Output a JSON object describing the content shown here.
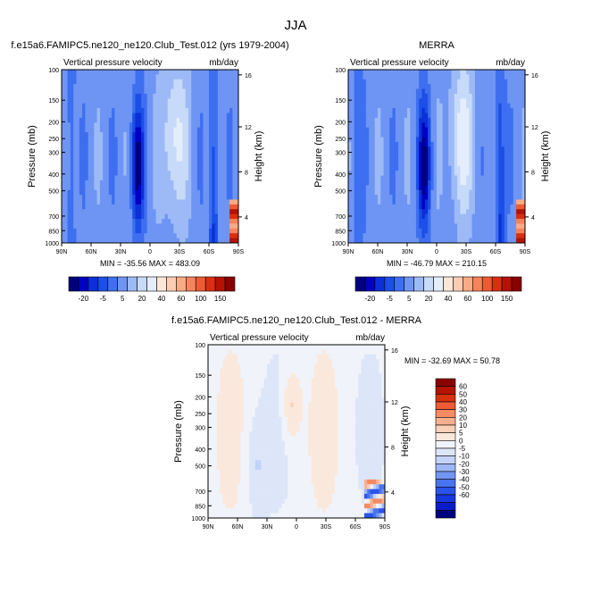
{
  "figure": {
    "title": "JJA"
  },
  "colors": {
    "diverging_wide": [
      "#00007f",
      "#0000c4",
      "#0b2fd8",
      "#1b4fe6",
      "#3e6ff0",
      "#6e95f4",
      "#9dbaf7",
      "#c7daf9",
      "#e4eefa",
      "#fbe6d8",
      "#fbcdb2",
      "#f9ab85",
      "#f6835b",
      "#ef5a33",
      "#db2d10",
      "#b51203",
      "#8a0000"
    ],
    "diverging_diff": [
      "#00007f",
      "#0a1cc8",
      "#1737de",
      "#2a53ea",
      "#4a73f0",
      "#7395f4",
      "#9db6f6",
      "#c3d3f7",
      "#dde6f8",
      "#f0f3f9",
      "#fbe8dc",
      "#fbd0b8",
      "#f9b08f",
      "#f58a63",
      "#ed5c36",
      "#d8310f",
      "#b51303",
      "#8a0000"
    ]
  },
  "chart_data": [
    {
      "type": "heatmap",
      "title": "f.e15a6.FAMIPC5.ne120_ne120.Club_Test.012 (yrs 1979-2004)",
      "left_string": "Vertical pressure velocity",
      "right_string": "mb/day",
      "xlabel": "",
      "ylabel": "Pressure (mb)",
      "ylabel_right": "Height (km)",
      "x_ticks": [
        "90N",
        "60N",
        "30N",
        "0",
        "30S",
        "60S",
        "90S"
      ],
      "y_ticks": [
        "100",
        "150",
        "200",
        "250",
        "300",
        "400",
        "500",
        "700",
        "850",
        "1000"
      ],
      "y2_ticks": [
        "4",
        "8",
        "12",
        "16"
      ],
      "min_max": "MIN = -35.56  MAX = 483.09",
      "colorbar_labels": [
        "-20",
        "-5",
        "5",
        "20",
        "40",
        "60",
        "100",
        "150"
      ],
      "colorbar_levels": [
        "-30",
        "-25",
        "-20",
        "-15",
        "-10",
        "-5",
        "0",
        "5",
        "10",
        "20",
        "30",
        "40",
        "50",
        "60",
        "80",
        "100",
        "120",
        "150"
      ]
    },
    {
      "type": "heatmap",
      "title": "MERRA",
      "left_string": "Vertical pressure velocity",
      "right_string": "mb/day",
      "xlabel": "",
      "ylabel": "Pressure (mb)",
      "ylabel_right": "Height (km)",
      "x_ticks": [
        "90N",
        "60N",
        "30N",
        "0",
        "30S",
        "60S",
        "90S"
      ],
      "y_ticks": [
        "100",
        "150",
        "200",
        "250",
        "300",
        "400",
        "500",
        "700",
        "850",
        "1000"
      ],
      "y2_ticks": [
        "4",
        "8",
        "12",
        "16"
      ],
      "min_max": "MIN = -46.79  MAX = 210.15",
      "colorbar_labels": [
        "-20",
        "-5",
        "5",
        "20",
        "40",
        "60",
        "100",
        "150"
      ]
    },
    {
      "type": "heatmap",
      "title": "f.e15a6.FAMIPC5.ne120_ne120.Club_Test.012 - MERRA",
      "left_string": "Vertical pressure velocity",
      "right_string": "mb/day",
      "xlabel": "",
      "ylabel": "Pressure (mb)",
      "ylabel_right": "Height (km)",
      "x_ticks": [
        "90N",
        "60N",
        "30N",
        "0",
        "30S",
        "60S",
        "90S"
      ],
      "y_ticks": [
        "100",
        "150",
        "200",
        "250",
        "300",
        "400",
        "500",
        "700",
        "850",
        "1000"
      ],
      "y2_ticks": [
        "4",
        "8",
        "12",
        "16"
      ],
      "min_max": "MIN = -32.69  MAX =  50.78",
      "colorbar_labels": [
        "60",
        "50",
        "40",
        "30",
        "20",
        "10",
        "5",
        "0",
        "-5",
        "-10",
        "-20",
        "-30",
        "-40",
        "-50",
        "-60"
      ]
    }
  ]
}
